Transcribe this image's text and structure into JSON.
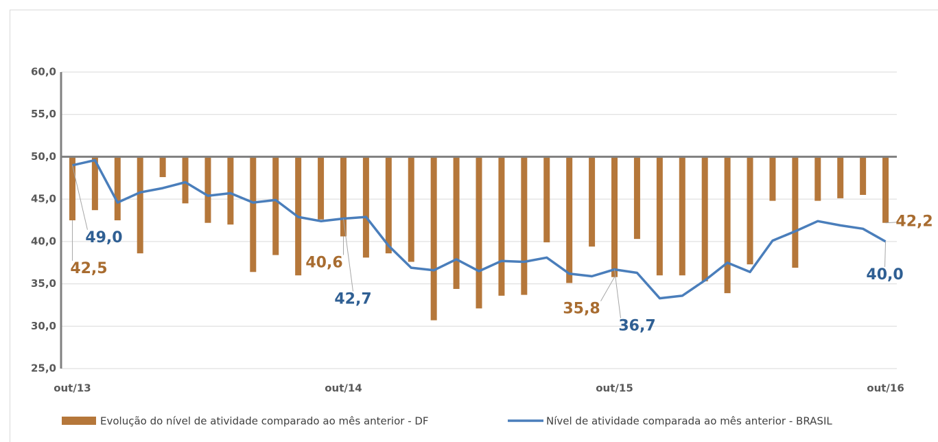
{
  "chart_data": {
    "type": "bar_line",
    "categories": [
      "out/13",
      null,
      null,
      null,
      null,
      null,
      null,
      null,
      null,
      null,
      null,
      null,
      "out/14",
      null,
      null,
      null,
      null,
      null,
      null,
      null,
      null,
      null,
      null,
      null,
      "out/15",
      null,
      null,
      null,
      null,
      null,
      null,
      null,
      null,
      null,
      null,
      null,
      "out/16"
    ],
    "series": [
      {
        "name": "Evolução do nível de atividade comparado ao mês anterior - DF",
        "type": "bar",
        "color": "#b5773a",
        "label_color": "#a86c30",
        "values": [
          42.5,
          43.7,
          42.5,
          38.6,
          47.6,
          44.5,
          42.2,
          42.0,
          36.4,
          38.4,
          36.0,
          42.6,
          40.6,
          38.1,
          38.6,
          37.6,
          30.7,
          34.4,
          32.1,
          33.6,
          33.7,
          39.9,
          35.1,
          39.4,
          35.8,
          40.3,
          36.0,
          36.0,
          35.3,
          33.9,
          37.3,
          44.8,
          36.9,
          44.8,
          45.1,
          45.5,
          42.2
        ],
        "value_labels": [
          "42,5",
          null,
          null,
          null,
          null,
          null,
          null,
          null,
          null,
          null,
          null,
          null,
          "40,6",
          null,
          null,
          null,
          null,
          null,
          null,
          null,
          null,
          null,
          null,
          null,
          "35,8",
          null,
          null,
          null,
          null,
          null,
          null,
          null,
          null,
          null,
          null,
          null,
          "42,2"
        ]
      },
      {
        "name": "Nível de atividade comparada ao mês anterior - BRASIL",
        "type": "line",
        "color": "#4a7ebb",
        "label_color": "#2f5f93",
        "values": [
          49.0,
          49.6,
          44.6,
          45.8,
          46.3,
          47.0,
          45.4,
          45.7,
          44.6,
          44.9,
          42.9,
          42.4,
          42.7,
          42.9,
          39.5,
          36.9,
          36.6,
          37.9,
          36.5,
          37.7,
          37.6,
          38.1,
          36.2,
          35.9,
          36.7,
          36.3,
          33.3,
          33.6,
          35.4,
          37.5,
          36.4,
          40.1,
          41.2,
          42.4,
          41.9,
          41.5,
          40.0
        ],
        "value_labels": [
          "49,0",
          null,
          null,
          null,
          null,
          null,
          null,
          null,
          null,
          null,
          null,
          null,
          "42,7",
          null,
          null,
          null,
          null,
          null,
          null,
          null,
          null,
          null,
          null,
          null,
          "36,7",
          null,
          null,
          null,
          null,
          null,
          null,
          null,
          null,
          null,
          null,
          null,
          "40,0"
        ]
      }
    ],
    "ylim": [
      25,
      60
    ],
    "yticks": [
      {
        "value": 25,
        "label": "25,0"
      },
      {
        "value": 30,
        "label": "30,0"
      },
      {
        "value": 35,
        "label": "35,0"
      },
      {
        "value": 40,
        "label": "40,0"
      },
      {
        "value": 45,
        "label": "45,0"
      },
      {
        "value": 50,
        "label": "50,0"
      },
      {
        "value": 55,
        "label": "55,0"
      },
      {
        "value": 60,
        "label": "60,0"
      }
    ],
    "x_axis_at": 50,
    "grid": true,
    "legend": "bottom"
  }
}
